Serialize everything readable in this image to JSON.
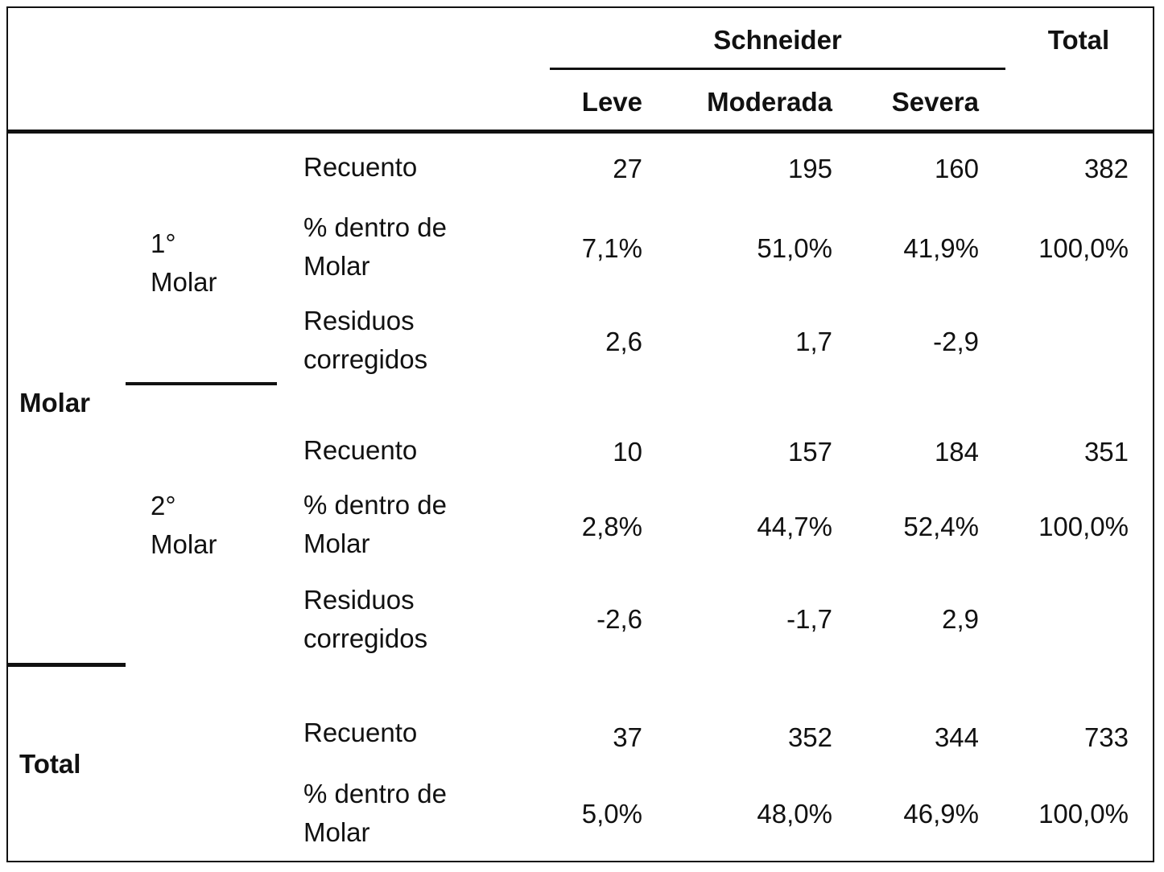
{
  "header": {
    "group": "Schneider",
    "total": "Total",
    "columns": [
      "Leve",
      "Moderada",
      "Severa"
    ]
  },
  "outer_label": "Molar",
  "total_label": "Total",
  "groups": [
    {
      "label_line1": "1°",
      "label_line2": "Molar",
      "recuento_label": "Recuento",
      "pct_line1": "% dentro de",
      "pct_line2": "Molar",
      "res_line1": "Residuos",
      "res_line2": "corregidos",
      "recuento": [
        "27",
        "195",
        "160",
        "382"
      ],
      "pct": [
        "7,1%",
        "51,0%",
        "41,9%",
        "100,0%"
      ],
      "residuos": [
        "2,6",
        "1,7",
        "-2,9"
      ]
    },
    {
      "label_line1": "2°",
      "label_line2": "Molar",
      "recuento_label": "Recuento",
      "pct_line1": "% dentro de",
      "pct_line2": "Molar",
      "res_line1": "Residuos",
      "res_line2": "corregidos",
      "recuento": [
        "10",
        "157",
        "184",
        "351"
      ],
      "pct": [
        "2,8%",
        "44,7%",
        "52,4%",
        "100,0%"
      ],
      "residuos": [
        "-2,6",
        "-1,7",
        "2,9"
      ]
    }
  ],
  "total_row": {
    "recuento_label": "Recuento",
    "pct_line1": "% dentro de",
    "pct_line2": "Molar",
    "recuento": [
      "37",
      "352",
      "344",
      "733"
    ],
    "pct": [
      "5,0%",
      "48,0%",
      "46,9%",
      "100,0%"
    ]
  }
}
